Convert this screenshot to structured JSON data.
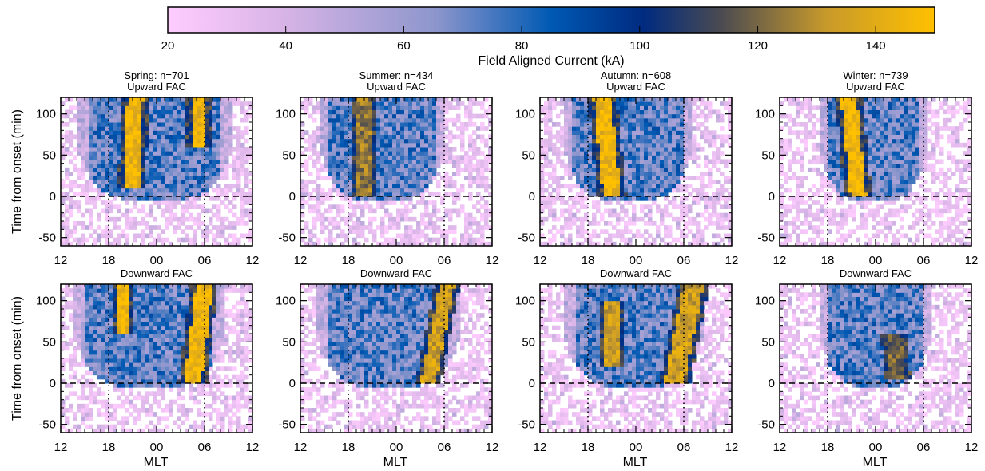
{
  "colorbar": {
    "label": "Field Aligned Current (kA)",
    "range": [
      20,
      150
    ],
    "ticks": [
      "20",
      "40",
      "60",
      "80",
      "100",
      "120",
      "140"
    ],
    "colors": [
      "#ffccff",
      "#d8b4e6",
      "#8c96cc",
      "#0059b3",
      "#002b80",
      "#4a4a52",
      "#c89a2a",
      "#ffc000"
    ]
  },
  "axes": {
    "ylabel": "Time from onset (min)",
    "xlabel": "MLT",
    "xtick_labels": [
      "12",
      "18",
      "00",
      "06",
      "12"
    ],
    "ytick_labels": [
      "100",
      "50",
      "0",
      "-50"
    ]
  },
  "chart_data": {
    "type": "heatmap",
    "x_axis": {
      "label": "MLT",
      "ticks": [
        "12",
        "18",
        "00",
        "06",
        "12"
      ],
      "range_hours": [
        12,
        36
      ]
    },
    "y_axis": {
      "label": "Time from onset (min)",
      "ticks": [
        100,
        50,
        0,
        -50
      ],
      "range": [
        -60,
        120
      ]
    },
    "reference_lines": {
      "onset_time_min": 0,
      "mlt_dotted": [
        "18",
        "06"
      ]
    },
    "panels": [
      {
        "season": "Spring: n=701",
        "fac_type": "Upward FAC",
        "title_line1": "Spring: n=701",
        "title_line2": "Upward FAC",
        "peak_kA": 150,
        "yellow_bands": [
          {
            "center_mlt": 20.8,
            "width_h": 2.0,
            "tmin": 10,
            "tmax": 120,
            "tilt": 0.004
          },
          {
            "center_mlt": 29.2,
            "width_h": 1.8,
            "tmin": 60,
            "tmax": 120,
            "tilt": 0
          }
        ],
        "blue_region": {
          "mlt_min": 14.0,
          "mlt_max": 33.5,
          "tmin": -5
        }
      },
      {
        "season": "Summer: n=434",
        "fac_type": "Upward FAC",
        "title_line1": "Summer: n=434",
        "title_line2": "Upward FAC",
        "peak_kA": 130,
        "yellow_bands": [
          {
            "center_mlt": 20.0,
            "width_h": 1.8,
            "tmin": 0,
            "tmax": 120,
            "tilt": 0
          }
        ],
        "blue_region": {
          "mlt_min": 14.5,
          "mlt_max": 30.0,
          "tmin": -5
        }
      },
      {
        "season": "Autumn: n=608",
        "fac_type": "Upward FAC",
        "title_line1": "Autumn: n=608",
        "title_line2": "Upward FAC",
        "peak_kA": 150,
        "yellow_bands": [
          {
            "center_mlt": 21.0,
            "width_h": 2.2,
            "tmin": 0,
            "tmax": 120,
            "tilt": -0.01
          }
        ],
        "blue_region": {
          "mlt_min": 15.0,
          "mlt_max": 31.0,
          "tmin": -5
        }
      },
      {
        "season": "Winter: n=739",
        "fac_type": "Upward FAC",
        "title_line1": "Winter: n=739",
        "title_line2": "Upward FAC",
        "peak_kA": 150,
        "yellow_bands": [
          {
            "center_mlt": 21.8,
            "width_h": 2.0,
            "tmin": 0,
            "tmax": 120,
            "tilt": -0.01
          }
        ],
        "blue_region": {
          "mlt_min": 17.0,
          "mlt_max": 30.5,
          "tmin": -5
        }
      },
      {
        "season": "Spring",
        "fac_type": "Downward FAC",
        "title_line1": "",
        "title_line2": "Downward FAC",
        "peak_kA": 150,
        "yellow_bands": [
          {
            "center_mlt": 28.5,
            "width_h": 2.2,
            "tmin": 0,
            "tmax": 120,
            "tilt": 0.012
          },
          {
            "center_mlt": 19.8,
            "width_h": 1.2,
            "tmin": 60,
            "tmax": 120,
            "tilt": 0
          }
        ],
        "blue_region": {
          "mlt_min": 13.5,
          "mlt_max": 32.5,
          "tmin": -5
        }
      },
      {
        "season": "Summer",
        "fac_type": "Downward FAC",
        "title_line1": "",
        "title_line2": "Downward FAC",
        "peak_kA": 140,
        "yellow_bands": [
          {
            "center_mlt": 28.0,
            "width_h": 1.8,
            "tmin": 0,
            "tmax": 120,
            "tilt": 0.02
          }
        ],
        "blue_region": {
          "mlt_min": 14.0,
          "mlt_max": 32.0,
          "tmin": -5
        }
      },
      {
        "season": "Autumn",
        "fac_type": "Downward FAC",
        "title_line1": "",
        "title_line2": "Downward FAC",
        "peak_kA": 140,
        "yellow_bands": [
          {
            "center_mlt": 28.8,
            "width_h": 2.4,
            "tmin": 0,
            "tmax": 120,
            "tilt": 0.02
          },
          {
            "center_mlt": 21.0,
            "width_h": 2.0,
            "tmin": 20,
            "tmax": 100,
            "tilt": 0
          }
        ],
        "blue_region": {
          "mlt_min": 15.0,
          "mlt_max": 32.5,
          "tmin": -5
        }
      },
      {
        "season": "Winter",
        "fac_type": "Downward FAC",
        "title_line1": "",
        "title_line2": "Downward FAC",
        "peak_kA": 125,
        "yellow_bands": [
          {
            "center_mlt": 26.8,
            "width_h": 1.8,
            "tmin": 5,
            "tmax": 60,
            "tilt": -0.01
          }
        ],
        "blue_region": {
          "mlt_min": 17.0,
          "mlt_max": 31.0,
          "tmin": -5
        }
      }
    ]
  }
}
